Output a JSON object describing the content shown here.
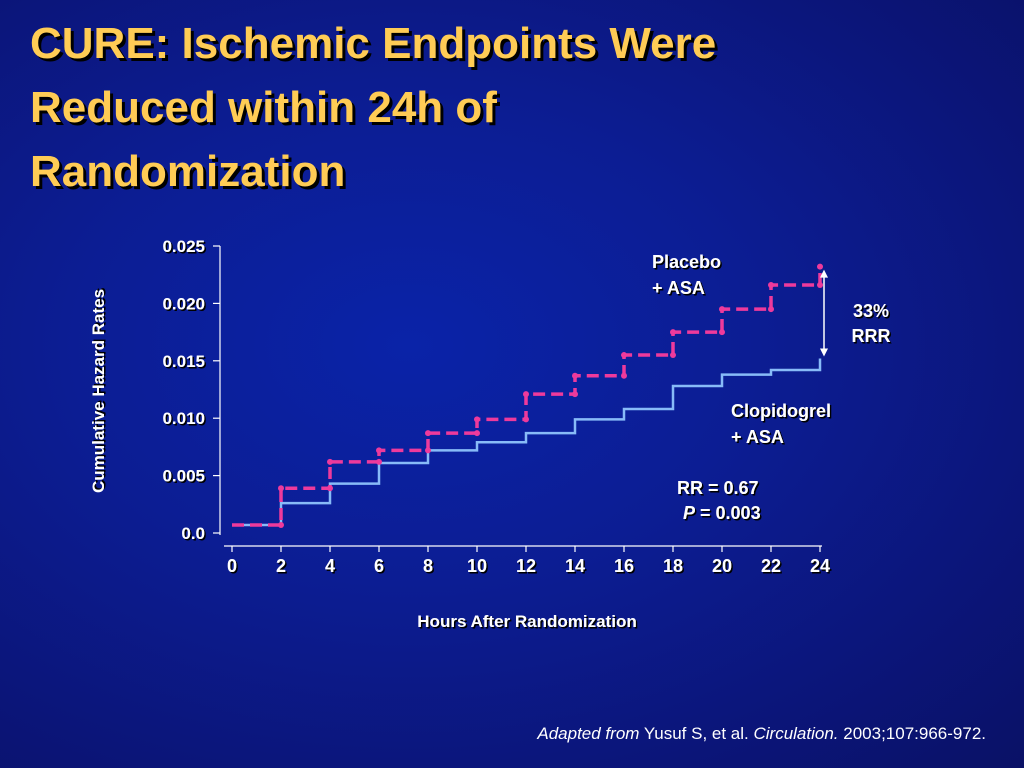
{
  "title": {
    "lines": [
      "CURE: Ischemic Endpoints Were",
      "Reduced within 24h of",
      "Randomization"
    ]
  },
  "chart_data": {
    "type": "line",
    "ylabel": "Cumulative Hazard Rates",
    "xlabel": "Hours After Randomization",
    "ylim": [
      0,
      0.025
    ],
    "xlim": [
      0,
      24
    ],
    "x_ticks": [
      "0",
      "2",
      "4",
      "6",
      "8",
      "10",
      "12",
      "14",
      "16",
      "18",
      "20",
      "22",
      "24"
    ],
    "y_ticks": [
      "0.0",
      "0.005",
      "0.010",
      "0.015",
      "0.020",
      "0.025"
    ],
    "y_tick_values": [
      0,
      0.005,
      0.01,
      0.015,
      0.02,
      0.025
    ],
    "step": true,
    "series": [
      {
        "name_lines": [
          "Placebo",
          "+ ASA"
        ],
        "color": "#ee3a9c",
        "dashed": true,
        "x": [
          0,
          2,
          4,
          6,
          8,
          10,
          12,
          14,
          16,
          18,
          20,
          22,
          24
        ],
        "y": [
          0.0007,
          0.0039,
          0.0062,
          0.0072,
          0.0087,
          0.0099,
          0.0121,
          0.0137,
          0.0155,
          0.0175,
          0.0195,
          0.0216,
          0.0232
        ]
      },
      {
        "name_lines": [
          "Clopidogrel",
          "+ ASA"
        ],
        "color": "#88bbf8",
        "dashed": false,
        "x": [
          0,
          2,
          4,
          6,
          8,
          10,
          12,
          14,
          16,
          18,
          20,
          22,
          24
        ],
        "y": [
          0.0007,
          0.0026,
          0.0043,
          0.0061,
          0.0072,
          0.0079,
          0.0087,
          0.0099,
          0.0108,
          0.0128,
          0.0138,
          0.0142,
          0.0152
        ]
      }
    ],
    "annotations": {
      "rrr_lines": [
        "33%",
        "RRR"
      ],
      "rr_line": "RR = 0.67",
      "p_label": "P",
      "p_rest": " = 0.003"
    }
  },
  "citation": {
    "adapted": "Adapted from",
    "authors": " Yusuf S, et al. ",
    "journal": "Circulation.",
    "ref": " 2003;107:966-972."
  }
}
